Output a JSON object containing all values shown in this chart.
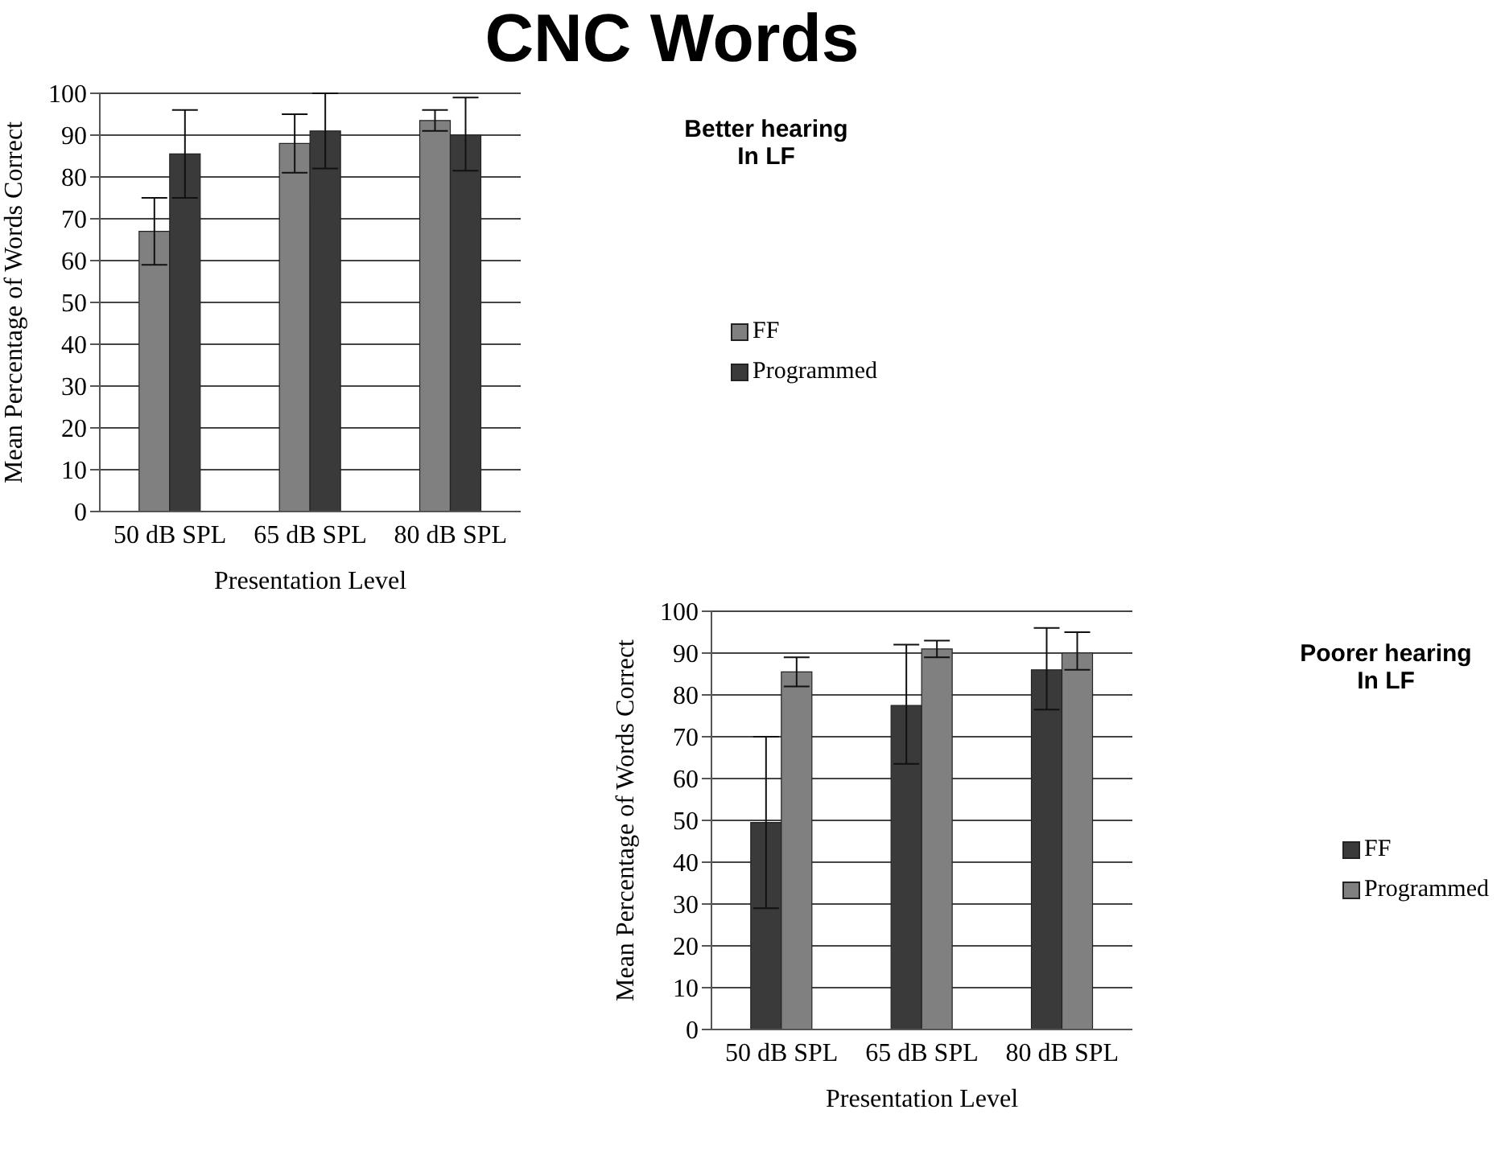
{
  "chart_data": [
    {
      "type": "bar",
      "title": "CNC Words",
      "xlabel": "Presentation Level",
      "ylabel": "Mean Percentage of Words Correct",
      "categories": [
        "50 dB SPL",
        "65 dB SPL",
        "80 dB SPL"
      ],
      "series": [
        {
          "name": "FF",
          "color": "#808080",
          "values": [
            67,
            88,
            93.5
          ],
          "errors": [
            [
              59,
              75
            ],
            [
              81,
              95
            ],
            [
              91,
              96
            ]
          ]
        },
        {
          "name": "Programmed",
          "color": "#3a3a3a",
          "values": [
            85.5,
            91,
            90
          ],
          "errors": [
            [
              75,
              96
            ],
            [
              82,
              100
            ],
            [
              81.5,
              99
            ]
          ]
        }
      ],
      "ylim": [
        0,
        100
      ],
      "yticks": [
        0,
        10,
        20,
        30,
        40,
        50,
        60,
        70,
        80,
        90,
        100
      ],
      "grid": "y",
      "legend": "right",
      "annotations": [
        "Better hearing In LF"
      ]
    },
    {
      "type": "bar",
      "xlabel": "Presentation Level",
      "ylabel": "Mean Percentage of Words Correct",
      "categories": [
        "50 dB SPL",
        "65 dB SPL",
        "80 dB SPL"
      ],
      "series": [
        {
          "name": "FF",
          "color": "#3a3a3a",
          "values": [
            49.5,
            77.5,
            86
          ],
          "errors": [
            [
              29,
              70
            ],
            [
              63.5,
              92
            ],
            [
              76.5,
              96
            ]
          ]
        },
        {
          "name": "Programmed",
          "color": "#808080",
          "values": [
            85.5,
            91,
            90
          ],
          "errors": [
            [
              82,
              89
            ],
            [
              89,
              93
            ],
            [
              86,
              95
            ]
          ]
        }
      ],
      "ylim": [
        0,
        100
      ],
      "yticks": [
        0,
        10,
        20,
        30,
        40,
        50,
        60,
        70,
        80,
        90,
        100
      ],
      "grid": "y",
      "legend": "right",
      "annotations": [
        "Poorer hearing In LF"
      ]
    }
  ]
}
